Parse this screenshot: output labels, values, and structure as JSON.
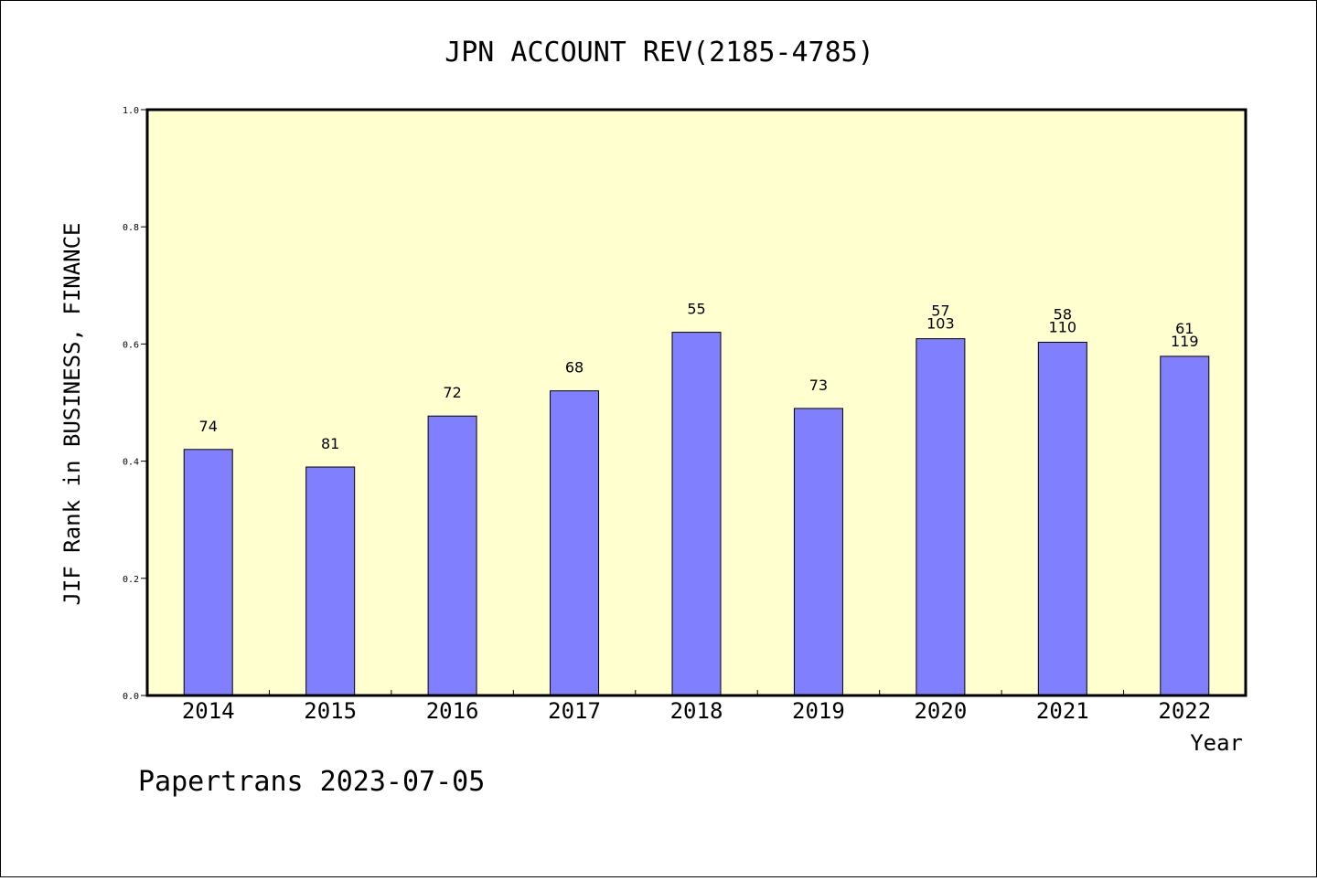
{
  "chart_data": {
    "type": "bar",
    "title": "JPN ACCOUNT REV(2185-4785)",
    "ylabel": "JIF Rank in BUSINESS, FINANCE",
    "xlabel": "Year",
    "categories": [
      "2014",
      "2015",
      "2016",
      "2017",
      "2018",
      "2019",
      "2020",
      "2021",
      "2022"
    ],
    "values": [
      0.42,
      0.39,
      0.477,
      0.52,
      0.62,
      0.49,
      0.609,
      0.603,
      0.579
    ],
    "bar_labels": [
      [
        "74"
      ],
      [
        "81"
      ],
      [
        "72"
      ],
      [
        "68"
      ],
      [
        "55"
      ],
      [
        "73"
      ],
      [
        "57",
        "103"
      ],
      [
        "58",
        "110"
      ],
      [
        "61",
        "119"
      ]
    ],
    "ylim": [
      0.0,
      1.0
    ],
    "yticks": [
      "0.0",
      "0.2",
      "0.4",
      "0.6",
      "0.8",
      "1.0"
    ],
    "grid": false,
    "colors": {
      "bar": "#8080ff",
      "plot_background": "#ffffd0",
      "axis": "#000000"
    }
  },
  "footer": "Papertrans 2023-07-05"
}
